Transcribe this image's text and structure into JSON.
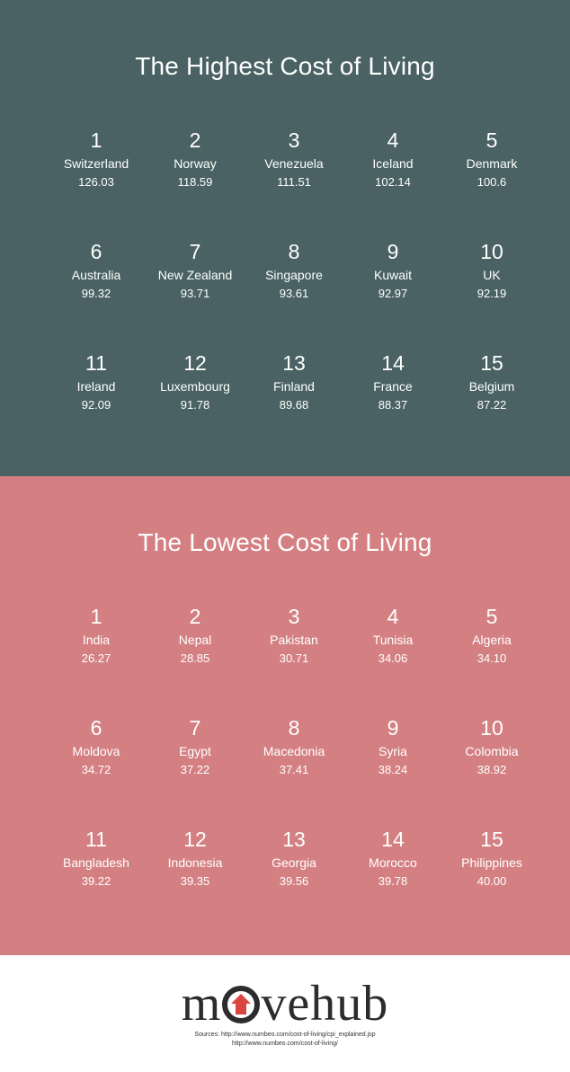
{
  "colors": {
    "high_bg": "#4a6263",
    "low_bg": "#d48083",
    "logo_accent": "#d9463f"
  },
  "highest": {
    "title": "The Highest Cost of Living",
    "entries": [
      {
        "rank": "1",
        "country": "Switzerland",
        "value": "126.03"
      },
      {
        "rank": "2",
        "country": "Norway",
        "value": "118.59"
      },
      {
        "rank": "3",
        "country": "Venezuela",
        "value": "111.51"
      },
      {
        "rank": "4",
        "country": "Iceland",
        "value": "102.14"
      },
      {
        "rank": "5",
        "country": "Denmark",
        "value": "100.6"
      },
      {
        "rank": "6",
        "country": "Australia",
        "value": "99.32"
      },
      {
        "rank": "7",
        "country": "New Zealand",
        "value": "93.71"
      },
      {
        "rank": "8",
        "country": "Singapore",
        "value": "93.61"
      },
      {
        "rank": "9",
        "country": "Kuwait",
        "value": "92.97"
      },
      {
        "rank": "10",
        "country": "UK",
        "value": "92.19"
      },
      {
        "rank": "11",
        "country": "Ireland",
        "value": "92.09"
      },
      {
        "rank": "12",
        "country": "Luxembourg",
        "value": "91.78"
      },
      {
        "rank": "13",
        "country": "Finland",
        "value": "89.68"
      },
      {
        "rank": "14",
        "country": "France",
        "value": "88.37"
      },
      {
        "rank": "15",
        "country": "Belgium",
        "value": "87.22"
      }
    ]
  },
  "lowest": {
    "title": "The Lowest Cost of Living",
    "entries": [
      {
        "rank": "1",
        "country": "India",
        "value": "26.27"
      },
      {
        "rank": "2",
        "country": "Nepal",
        "value": "28.85"
      },
      {
        "rank": "3",
        "country": "Pakistan",
        "value": "30.71"
      },
      {
        "rank": "4",
        "country": "Tunisia",
        "value": "34.06"
      },
      {
        "rank": "5",
        "country": "Algeria",
        "value": "34.10"
      },
      {
        "rank": "6",
        "country": "Moldova",
        "value": "34.72"
      },
      {
        "rank": "7",
        "country": "Egypt",
        "value": "37.22"
      },
      {
        "rank": "8",
        "country": "Macedonia",
        "value": "37.41"
      },
      {
        "rank": "9",
        "country": "Syria",
        "value": "38.24"
      },
      {
        "rank": "10",
        "country": "Colombia",
        "value": "38.92"
      },
      {
        "rank": "11",
        "country": "Bangladesh",
        "value": "39.22"
      },
      {
        "rank": "12",
        "country": "Indonesia",
        "value": "39.35"
      },
      {
        "rank": "13",
        "country": "Georgia",
        "value": "39.56"
      },
      {
        "rank": "14",
        "country": "Morocco",
        "value": "39.78"
      },
      {
        "rank": "15",
        "country": "Philippines",
        "value": "40.00"
      }
    ]
  },
  "footer": {
    "logo_prefix": "m",
    "logo_suffix": "vehub",
    "logo_icon": "house-icon",
    "sources_line1": "Sources: http://www.numbeo.com/cost-of-living/cpi_explained.jsp",
    "sources_line2": "http://www.numbeo.com/cost-of-living/"
  }
}
